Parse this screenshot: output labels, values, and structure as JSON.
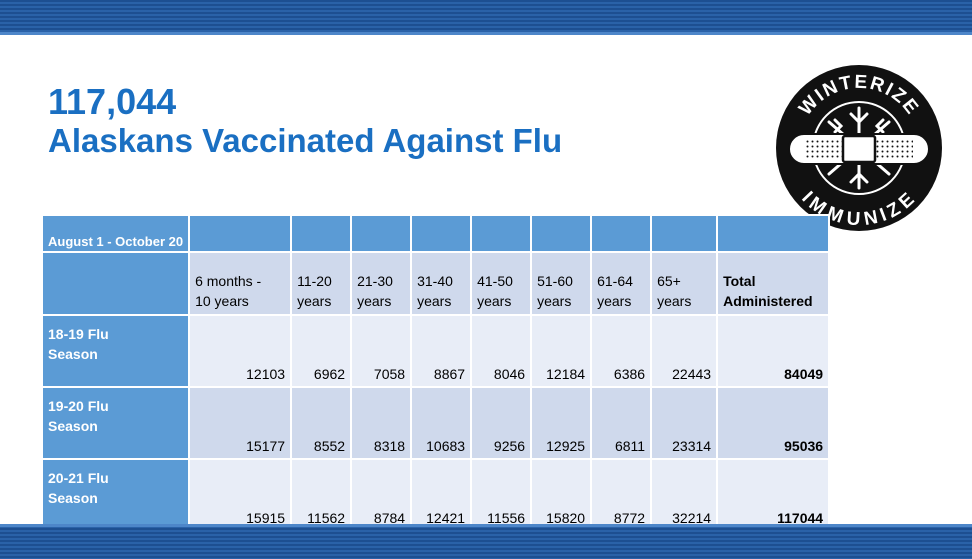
{
  "title": {
    "count": "117,044",
    "subtitle": "Alaskans Vaccinated Against Flu"
  },
  "logo": {
    "top_text": "WINTERIZE",
    "bottom_text": "IMMUNIZE",
    "icon": "snowflake-bandage-icon"
  },
  "table": {
    "period": "August 1 - October 20",
    "columns": [
      [
        "6 months -",
        "10 years"
      ],
      [
        "11-20",
        "years"
      ],
      [
        "21-30",
        "years"
      ],
      [
        "31-40",
        "years"
      ],
      [
        "41-50",
        "years"
      ],
      [
        "51-60",
        "years"
      ],
      [
        "61-64",
        "years"
      ],
      [
        "65+",
        "years"
      ],
      [
        "Total",
        "Administered"
      ]
    ],
    "rows": [
      {
        "label": [
          "18-19 Flu",
          "Season"
        ],
        "values": [
          "12103",
          "6962",
          "7058",
          "8867",
          "8046",
          "12184",
          "6386",
          "22443",
          "84049"
        ]
      },
      {
        "label": [
          "19-20 Flu",
          "Season"
        ],
        "values": [
          "15177",
          "8552",
          "8318",
          "10683",
          "9256",
          "12925",
          "6811",
          "23314",
          "95036"
        ]
      },
      {
        "label": [
          "20-21 Flu",
          "Season"
        ],
        "values": [
          "15915",
          "11562",
          "8784",
          "12421",
          "11556",
          "15820",
          "8772",
          "32214",
          "117044"
        ]
      }
    ]
  },
  "colors": {
    "title": "#1a6fc2",
    "band": "#1d4f91",
    "header": "#5b9bd5",
    "row_light": "#e8edf7",
    "row_dark": "#cfd9ec"
  }
}
